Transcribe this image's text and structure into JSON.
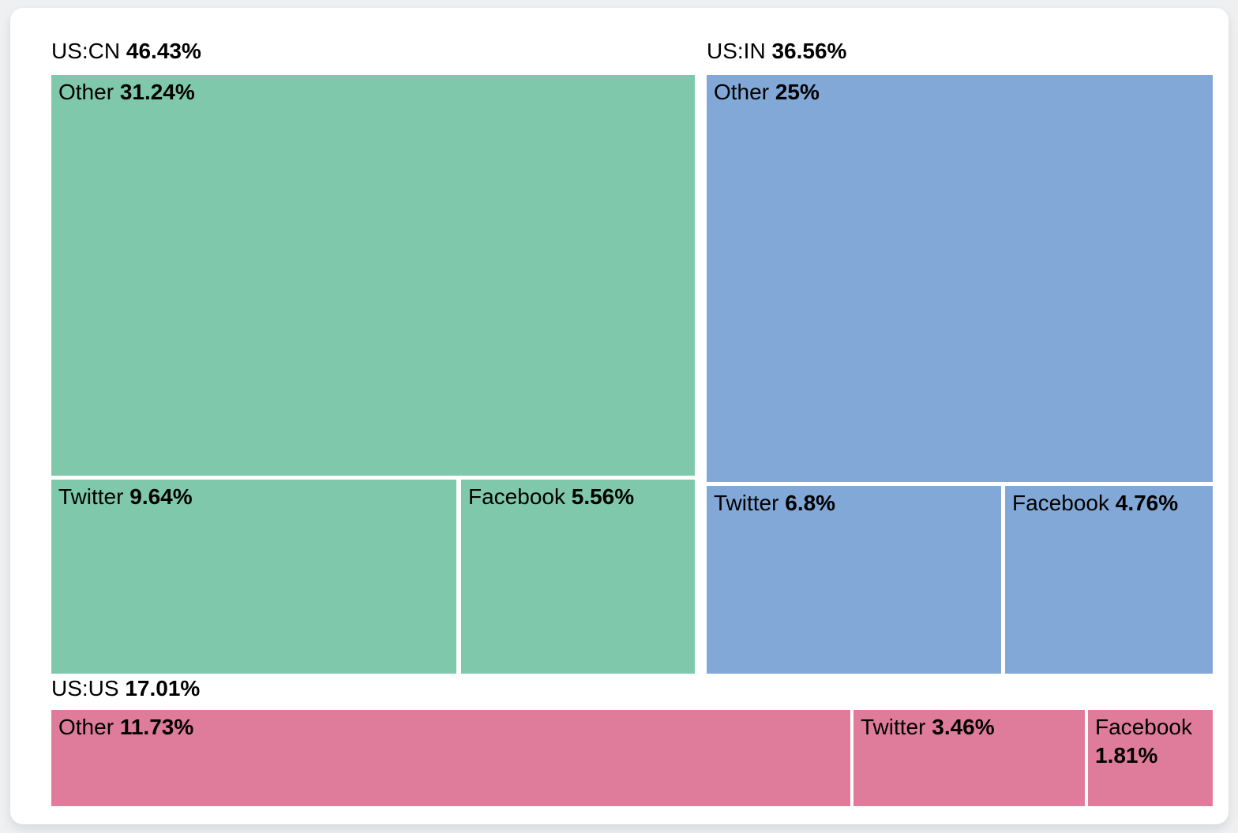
{
  "page": {
    "background_color": "#eef0f2",
    "card_background_color": "#ffffff"
  },
  "chart_data": {
    "type": "treemap",
    "title": "",
    "legend": "none",
    "unit": "percent",
    "groups": [
      {
        "name": "US:CN",
        "value": 46.43,
        "value_label": "46.43%",
        "color": "#7fc8ac",
        "children": [
          {
            "name": "Other",
            "value": 31.24,
            "value_label": "31.24%"
          },
          {
            "name": "Twitter",
            "value": 9.64,
            "value_label": "9.64%"
          },
          {
            "name": "Facebook",
            "value": 5.56,
            "value_label": "5.56%"
          }
        ]
      },
      {
        "name": "US:IN",
        "value": 36.56,
        "value_label": "36.56%",
        "color": "#81a8d7",
        "children": [
          {
            "name": "Other",
            "value": 25,
            "value_label": "25%"
          },
          {
            "name": "Twitter",
            "value": 6.8,
            "value_label": "6.8%"
          },
          {
            "name": "Facebook",
            "value": 4.76,
            "value_label": "4.76%"
          }
        ]
      },
      {
        "name": "US:US",
        "value": 17.01,
        "value_label": "17.01%",
        "color": "#e07c9b",
        "children": [
          {
            "name": "Other",
            "value": 11.73,
            "value_label": "11.73%"
          },
          {
            "name": "Twitter",
            "value": 3.46,
            "value_label": "3.46%"
          },
          {
            "name": "Facebook",
            "value": 1.81,
            "value_label": "1.81%"
          }
        ]
      }
    ]
  }
}
